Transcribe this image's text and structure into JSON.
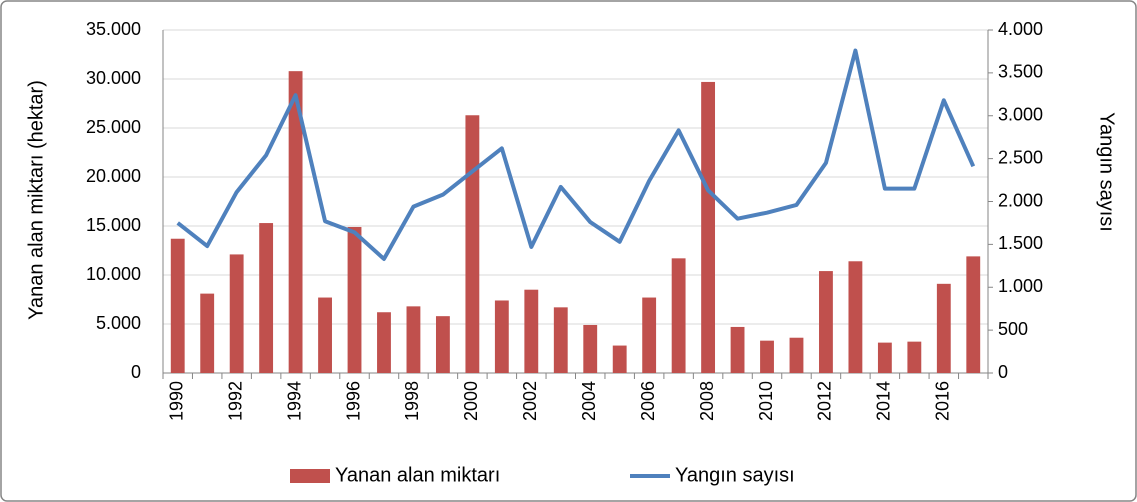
{
  "chart_data": {
    "type": "combo",
    "y_label": "Yanan alan miktarı  (hektar)",
    "y2_label": "Yangın sayısı",
    "categories": [
      "1990",
      null,
      "1992",
      null,
      "1994",
      null,
      "1996",
      null,
      "1998",
      null,
      "2000",
      null,
      "2002",
      null,
      "2004",
      null,
      "2006",
      null,
      "2008",
      null,
      "2010",
      null,
      "2012",
      null,
      "2014",
      null,
      "2016",
      null
    ],
    "series": [
      {
        "name": "Yanan alan miktarı",
        "type": "bar",
        "color": "#c0504d",
        "values": [
          13700,
          8100,
          12100,
          15300,
          30800,
          7700,
          14900,
          6200,
          6800,
          5800,
          26300,
          7400,
          8500,
          6700,
          4900,
          2800,
          7700,
          11700,
          29700,
          4700,
          3300,
          3600,
          10400,
          11400,
          3100,
          3200,
          9100,
          11900
        ]
      },
      {
        "name": "Yangın sayısı",
        "type": "line",
        "axis": "y2",
        "color": "#4f81bd",
        "values": [
          1750,
          1480,
          2110,
          2540,
          3240,
          1770,
          1640,
          1330,
          1940,
          2080,
          2350,
          2620,
          1470,
          2170,
          1760,
          1530,
          2240,
          2830,
          2130,
          1800,
          1870,
          1960,
          2450,
          3760,
          2150,
          2150,
          3180,
          2410
        ]
      }
    ],
    "ylim": [
      0,
      35000
    ],
    "yticks": [
      0,
      {
        "value": 5000,
        "label": "5.000"
      },
      {
        "value": 10000,
        "label": "10.000"
      },
      {
        "value": 15000,
        "label": "15.000"
      },
      {
        "value": 20000,
        "label": "20.000"
      },
      {
        "value": 25000,
        "label": "25.000"
      },
      {
        "value": 30000,
        "label": "30.000"
      },
      {
        "value": 35000,
        "label": "35.000"
      }
    ],
    "y2lim": [
      0,
      4000
    ],
    "y2ticks": [
      0,
      500,
      {
        "value": 1000,
        "label": "1.000"
      },
      {
        "value": 1500,
        "label": "1.500"
      },
      {
        "value": 2000,
        "label": "2.000"
      },
      {
        "value": 2500,
        "label": "2.500"
      },
      {
        "value": 3000,
        "label": "3.000"
      },
      {
        "value": 3500,
        "label": "3.500"
      },
      {
        "value": 4000,
        "label": "4.000"
      }
    ],
    "grid": true,
    "legend": "bottom"
  }
}
